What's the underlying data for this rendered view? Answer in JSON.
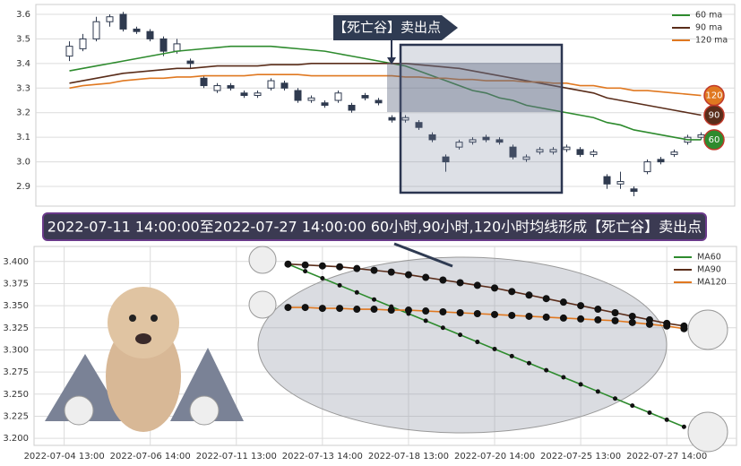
{
  "chart_data": [
    {
      "type": "candlestick",
      "annotation": "【死亡谷】卖出点",
      "xlim": [
        -2.5,
        49.5
      ],
      "ylim": [
        2.82,
        3.64
      ],
      "yticks": [
        {
          "value": 2.9,
          "label": "2.9"
        },
        {
          "value": 3,
          "label": "3.0"
        },
        3.1,
        3.2,
        3.3,
        3.4,
        3.5,
        3.6
      ],
      "grid": true,
      "legend": "upper right",
      "candle_colors": {
        "up": "#ffffff",
        "down": "#2f3a4f",
        "edge": "#2f3a4f"
      },
      "candles": [
        [
          3.43,
          3.49,
          3.41,
          3.47
        ],
        [
          3.46,
          3.52,
          3.45,
          3.5
        ],
        [
          3.5,
          3.59,
          3.49,
          3.57
        ],
        [
          3.57,
          3.6,
          3.55,
          3.59
        ],
        [
          3.6,
          3.61,
          3.53,
          3.54
        ],
        [
          3.54,
          3.55,
          3.52,
          3.53
        ],
        [
          3.53,
          3.54,
          3.49,
          3.5
        ],
        [
          3.5,
          3.51,
          3.43,
          3.45
        ],
        [
          3.45,
          3.5,
          3.44,
          3.48
        ],
        [
          3.41,
          3.42,
          3.38,
          3.4
        ],
        [
          3.34,
          3.35,
          3.3,
          3.31
        ],
        [
          3.29,
          3.32,
          3.28,
          3.31
        ],
        [
          3.31,
          3.32,
          3.29,
          3.3
        ],
        [
          3.28,
          3.29,
          3.26,
          3.27
        ],
        [
          3.27,
          3.29,
          3.26,
          3.28
        ],
        [
          3.3,
          3.34,
          3.29,
          3.33
        ],
        [
          3.32,
          3.33,
          3.29,
          3.3
        ],
        [
          3.29,
          3.3,
          3.24,
          3.25
        ],
        [
          3.25,
          3.27,
          3.24,
          3.26
        ],
        [
          3.24,
          3.25,
          3.22,
          3.23
        ],
        [
          3.25,
          3.29,
          3.24,
          3.28
        ],
        [
          3.23,
          3.24,
          3.2,
          3.21
        ],
        [
          3.27,
          3.28,
          3.25,
          3.26
        ],
        [
          3.25,
          3.26,
          3.23,
          3.24
        ],
        [
          3.18,
          3.19,
          3.16,
          3.17
        ],
        [
          3.17,
          3.19,
          3.16,
          3.18
        ],
        [
          3.16,
          3.17,
          3.13,
          3.14
        ],
        [
          3.11,
          3.12,
          3.08,
          3.09
        ],
        [
          3.02,
          3.03,
          2.96,
          3.0
        ],
        [
          3.06,
          3.09,
          3.05,
          3.08
        ],
        [
          3.08,
          3.1,
          3.07,
          3.09
        ],
        [
          3.1,
          3.11,
          3.08,
          3.09
        ],
        [
          3.09,
          3.1,
          3.07,
          3.08
        ],
        [
          3.06,
          3.07,
          3.01,
          3.02
        ],
        [
          3.01,
          3.03,
          3.0,
          3.02
        ],
        [
          3.04,
          3.06,
          3.03,
          3.05
        ],
        [
          3.04,
          3.06,
          3.03,
          3.05
        ],
        [
          3.05,
          3.07,
          3.04,
          3.06
        ],
        [
          3.05,
          3.06,
          3.02,
          3.03
        ],
        [
          3.03,
          3.05,
          3.02,
          3.04
        ],
        [
          2.94,
          2.95,
          2.89,
          2.91
        ],
        [
          2.91,
          2.96,
          2.89,
          2.92
        ],
        [
          2.89,
          2.9,
          2.86,
          2.88
        ],
        [
          2.96,
          3.01,
          2.95,
          3.0
        ],
        [
          3.01,
          3.02,
          2.99,
          3.0
        ],
        [
          3.03,
          3.05,
          3.02,
          3.04
        ],
        [
          3.08,
          3.11,
          3.07,
          3.1
        ],
        [
          3.1,
          3.12,
          3.09,
          3.11
        ]
      ],
      "series": [
        {
          "name": "60 ma",
          "color": "#2e8b2e",
          "badge": "60",
          "values": [
            3.37,
            3.38,
            3.39,
            3.4,
            3.41,
            3.42,
            3.43,
            3.44,
            3.45,
            3.455,
            3.46,
            3.465,
            3.47,
            3.47,
            3.47,
            3.47,
            3.465,
            3.46,
            3.455,
            3.45,
            3.44,
            3.43,
            3.42,
            3.41,
            3.4,
            3.39,
            3.37,
            3.35,
            3.33,
            3.31,
            3.29,
            3.28,
            3.26,
            3.25,
            3.23,
            3.22,
            3.21,
            3.2,
            3.19,
            3.18,
            3.16,
            3.15,
            3.13,
            3.12,
            3.11,
            3.1,
            3.09,
            3.09
          ]
        },
        {
          "name": "90 ma",
          "color": "#5a2d1a",
          "badge": "90",
          "values": [
            3.32,
            3.33,
            3.34,
            3.35,
            3.36,
            3.365,
            3.37,
            3.375,
            3.38,
            3.38,
            3.385,
            3.39,
            3.39,
            3.39,
            3.39,
            3.395,
            3.395,
            3.395,
            3.4,
            3.4,
            3.4,
            3.4,
            3.4,
            3.4,
            3.4,
            3.4,
            3.395,
            3.39,
            3.385,
            3.38,
            3.37,
            3.36,
            3.35,
            3.34,
            3.33,
            3.32,
            3.31,
            3.3,
            3.29,
            3.28,
            3.26,
            3.25,
            3.24,
            3.23,
            3.22,
            3.21,
            3.2,
            3.19
          ]
        },
        {
          "name": "120 ma",
          "color": "#e07820",
          "badge": "120",
          "values": [
            3.3,
            3.31,
            3.315,
            3.32,
            3.33,
            3.335,
            3.34,
            3.34,
            3.345,
            3.345,
            3.35,
            3.35,
            3.35,
            3.35,
            3.355,
            3.355,
            3.355,
            3.355,
            3.35,
            3.35,
            3.35,
            3.35,
            3.35,
            3.35,
            3.35,
            3.345,
            3.345,
            3.34,
            3.34,
            3.335,
            3.335,
            3.33,
            3.33,
            3.33,
            3.325,
            3.325,
            3.32,
            3.32,
            3.31,
            3.31,
            3.3,
            3.3,
            3.29,
            3.29,
            3.285,
            3.28,
            3.275,
            3.27
          ]
        }
      ]
    },
    {
      "type": "line",
      "title": "2022-07-11 14:00:00至2022-07-27 14:00:00 60小时,90小时,120小时均线形成【死亡谷】卖出点",
      "xlim": [
        -3.5,
        78.1
      ],
      "ylim": [
        3.192,
        3.417
      ],
      "xticks": [
        {
          "value": 0,
          "label": "2022-07-04 13:00"
        },
        {
          "value": 10,
          "label": "2022-07-06 14:00"
        },
        {
          "value": 20,
          "label": "2022-07-11 13:00"
        },
        {
          "value": 30,
          "label": "2022-07-13 14:00"
        },
        {
          "value": 40,
          "label": "2022-07-18 13:00"
        },
        {
          "value": 50,
          "label": "2022-07-20 14:00"
        },
        {
          "value": 60,
          "label": "2022-07-25 13:00"
        },
        {
          "value": 70,
          "label": "2022-07-27 14:00"
        }
      ],
      "yticks": [
        {
          "value": 3.2,
          "label": "3.200"
        },
        {
          "value": 3.225,
          "label": "3.225"
        },
        {
          "value": 3.25,
          "label": "3.250"
        },
        {
          "value": 3.275,
          "label": "3.275"
        },
        {
          "value": 3.3,
          "label": "3.300"
        },
        {
          "value": 3.325,
          "label": "3.325"
        },
        {
          "value": 3.35,
          "label": "3.350"
        },
        {
          "value": 3.375,
          "label": "3.375"
        },
        {
          "value": 3.4,
          "label": "3.400"
        }
      ],
      "grid": true,
      "legend": "upper right",
      "x": [
        26,
        28,
        30,
        32,
        34,
        36,
        38,
        40,
        42,
        44,
        46,
        48,
        50,
        52,
        54,
        56,
        58,
        60,
        62,
        64,
        66,
        68,
        70,
        72
      ],
      "series": [
        {
          "name": "MA60",
          "color": "#2e8b2e",
          "values": [
            3.397,
            3.389,
            3.381,
            3.373,
            3.365,
            3.357,
            3.349,
            3.341,
            3.333,
            3.325,
            3.317,
            3.309,
            3.301,
            3.293,
            3.285,
            3.277,
            3.269,
            3.261,
            3.253,
            3.245,
            3.237,
            3.229,
            3.221,
            3.213
          ]
        },
        {
          "name": "MA90",
          "color": "#5a2d1a",
          "values": [
            3.397,
            3.396,
            3.395,
            3.394,
            3.392,
            3.39,
            3.388,
            3.385,
            3.382,
            3.379,
            3.376,
            3.373,
            3.37,
            3.366,
            3.362,
            3.358,
            3.354,
            3.35,
            3.346,
            3.342,
            3.338,
            3.334,
            3.33,
            3.327
          ]
        },
        {
          "name": "MA120",
          "color": "#e07820",
          "values": [
            3.348,
            3.348,
            3.347,
            3.347,
            3.346,
            3.346,
            3.345,
            3.345,
            3.344,
            3.343,
            3.342,
            3.341,
            3.34,
            3.339,
            3.338,
            3.337,
            3.336,
            3.335,
            3.334,
            3.333,
            3.331,
            3.329,
            3.327,
            3.324
          ]
        }
      ]
    }
  ]
}
